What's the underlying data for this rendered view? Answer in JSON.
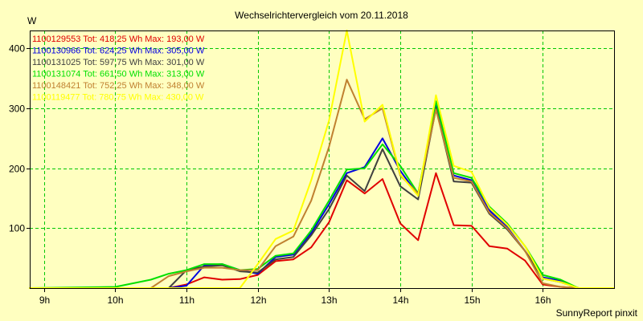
{
  "chart_data": {
    "type": "line",
    "title": "Wechselrichtervergleich vom 20.11.2018",
    "ylabel": "W",
    "xlabel": "",
    "footer": "SunnyReport pinxit",
    "xlim": [
      8.8,
      17.0
    ],
    "ylim": [
      0,
      430
    ],
    "grid": true,
    "legend_position": "top-left",
    "x_ticks": [
      {
        "value": 9,
        "label": "9h"
      },
      {
        "value": 10,
        "label": "10h"
      },
      {
        "value": 11,
        "label": "11h"
      },
      {
        "value": 12,
        "label": "12h"
      },
      {
        "value": 13,
        "label": "13h"
      },
      {
        "value": 14,
        "label": "14h"
      },
      {
        "value": 15,
        "label": "15h"
      },
      {
        "value": 16,
        "label": "16h"
      }
    ],
    "y_ticks": [
      {
        "value": 100,
        "label": "100"
      },
      {
        "value": 200,
        "label": "200"
      },
      {
        "value": 300,
        "label": "300"
      },
      {
        "value": 400,
        "label": "400"
      }
    ],
    "x": [
      8.8,
      10.0,
      10.25,
      10.5,
      10.75,
      11.0,
      11.25,
      11.5,
      11.75,
      12.0,
      12.25,
      12.5,
      12.75,
      13.0,
      13.25,
      13.5,
      13.75,
      14.0,
      14.25,
      14.5,
      14.75,
      15.0,
      15.25,
      15.5,
      15.75,
      16.0,
      16.25,
      16.5,
      16.75,
      17.0
    ],
    "series": [
      {
        "name": "1100129553",
        "legend": "1100129553 Tot: 418,25 Wh Max: 193,00 W",
        "color": "#e00000",
        "values": [
          0,
          0,
          0,
          0,
          0,
          6,
          18,
          14,
          15,
          22,
          45,
          48,
          68,
          110,
          180,
          158,
          182,
          108,
          80,
          192,
          105,
          104,
          70,
          66,
          46,
          6,
          2,
          0,
          0,
          0
        ]
      },
      {
        "name": "1100130966",
        "legend": "1100130966 Tot: 624,25 Wh Max: 305,00 W",
        "color": "#0000e0",
        "values": [
          0,
          0,
          0,
          0,
          0,
          4,
          38,
          40,
          30,
          24,
          52,
          56,
          92,
          140,
          192,
          202,
          250,
          196,
          155,
          305,
          188,
          180,
          130,
          102,
          62,
          18,
          12,
          0,
          0,
          0
        ]
      },
      {
        "name": "1100131025",
        "legend": "1100131025 Tot: 597,75 Wh Max: 301,00 W",
        "color": "#404040",
        "values": [
          0,
          0,
          0,
          0,
          0,
          30,
          36,
          38,
          28,
          26,
          48,
          52,
          88,
          132,
          188,
          162,
          232,
          170,
          148,
          300,
          178,
          176,
          124,
          98,
          62,
          16,
          10,
          0,
          0,
          0
        ]
      },
      {
        "name": "1100131074",
        "legend": "1100131074 Tot: 661,50 Wh Max: 313,00 W",
        "color": "#00e000",
        "values": [
          0,
          2,
          8,
          14,
          24,
          30,
          40,
          40,
          30,
          32,
          54,
          58,
          96,
          146,
          198,
          200,
          240,
          204,
          158,
          312,
          192,
          184,
          136,
          108,
          70,
          22,
          14,
          0,
          0,
          0
        ]
      },
      {
        "name": "1100148421",
        "legend": "1100148421 Tot: 752,25 Wh Max: 348,00 W",
        "color": "#c08030",
        "values": [
          0,
          0,
          0,
          0,
          20,
          28,
          34,
          34,
          30,
          30,
          70,
          86,
          146,
          236,
          348,
          282,
          300,
          188,
          158,
          298,
          184,
          178,
          126,
          100,
          62,
          8,
          2,
          0,
          0,
          0
        ]
      },
      {
        "name": "1100119477",
        "legend": "1100119477 Tot: 780,75 Wh Max: 430,00 W",
        "color": "#ffff00",
        "values": [
          0,
          0,
          0,
          0,
          0,
          0,
          0,
          0,
          0,
          40,
          82,
          96,
          180,
          280,
          430,
          278,
          306,
          190,
          154,
          322,
          204,
          194,
          134,
          106,
          70,
          16,
          10,
          0,
          0,
          0
        ]
      }
    ]
  }
}
